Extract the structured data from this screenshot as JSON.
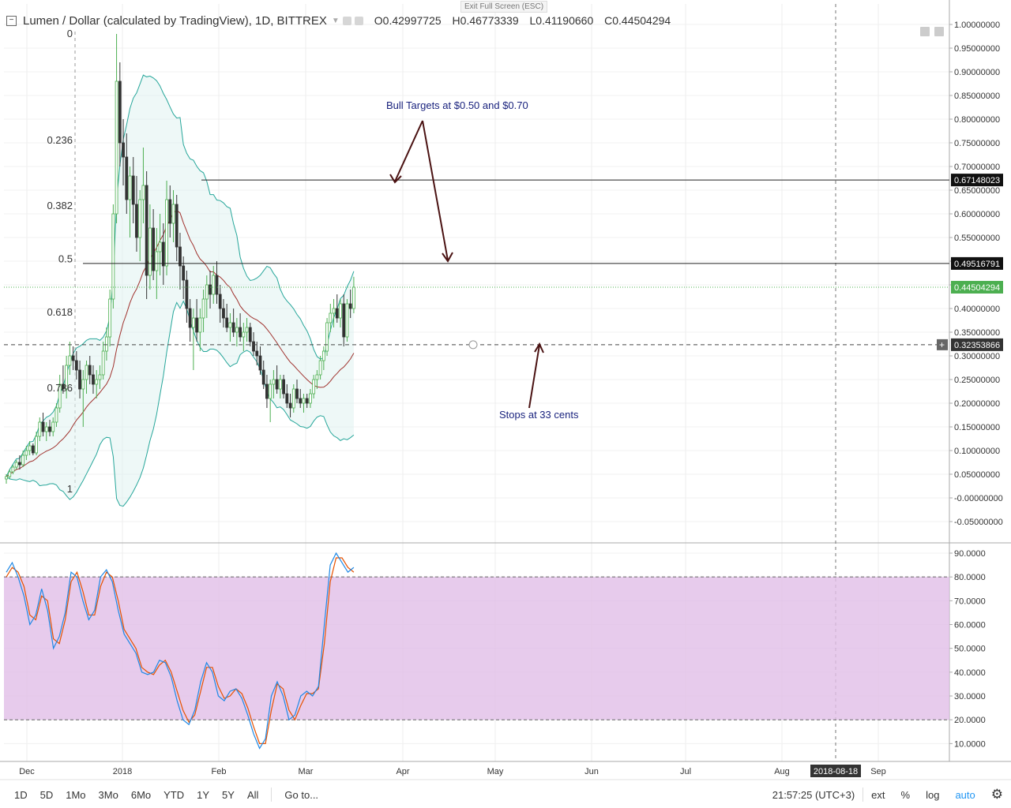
{
  "header": {
    "title": "Lumen / Dollar (calculated by TradingView), 1D, BITTREX",
    "open": "O0.42997725",
    "high": "H0.46773339",
    "low": "L0.41190660",
    "close": "C0.44504294",
    "exit_fullscreen": "Exit Full Screen (ESC)"
  },
  "toolbar": {
    "ranges": [
      "1D",
      "5D",
      "1Mo",
      "3Mo",
      "6Mo",
      "YTD",
      "1Y",
      "5Y",
      "All"
    ],
    "goto": "Go to...",
    "time": "21:57:25 (UTC+3)",
    "ext": "ext",
    "percent": "%",
    "log": "log",
    "auto": "auto",
    "settings_icon": "gear-icon"
  },
  "chart_data": [
    {
      "type": "candlestick",
      "pane": "price",
      "x_labels": [
        "Dec",
        "2018",
        "Feb",
        "Mar",
        "Apr",
        "May",
        "Jun",
        "Jul",
        "Aug",
        "Sep"
      ],
      "crosshair_date": "2018-08-18",
      "y_ticks": [
        "1.00000000",
        "0.95000000",
        "0.90000000",
        "0.85000000",
        "0.80000000",
        "0.75000000",
        "0.70000000",
        "0.65000000",
        "0.60000000",
        "0.55000000",
        "0.50000000",
        "0.45000000",
        "0.40000000",
        "0.35000000",
        "0.30000000",
        "0.25000000",
        "0.20000000",
        "0.15000000",
        "0.10000000",
        "0.05000000",
        "-0.00000000",
        "-0.05000000"
      ],
      "ylim": [
        -0.07,
        1.02
      ],
      "price_labels": [
        {
          "value": 0.67148023,
          "text": "0.67148023"
        },
        {
          "value": 0.49516791,
          "text": "0.49516791"
        },
        {
          "value": 0.44504294,
          "text": "0.44504294"
        },
        {
          "value": 0.32353866,
          "text": "0.32353866"
        }
      ],
      "fib_levels": [
        {
          "label": "0",
          "value": 0.98
        },
        {
          "label": "0.236",
          "value": 0.755
        },
        {
          "label": "0.382",
          "value": 0.617
        },
        {
          "label": "0.5",
          "value": 0.504
        },
        {
          "label": "0.618",
          "value": 0.392
        },
        {
          "label": "0.786",
          "value": 0.232
        },
        {
          "label": "1",
          "value": 0.018
        }
      ],
      "annotations": [
        {
          "text": "Bull Targets at $0.50 and $0.70"
        },
        {
          "text": "Stops at 33 cents"
        }
      ],
      "candles": [
        [
          0.04,
          0.05,
          0.03,
          0.045
        ],
        [
          0.045,
          0.06,
          0.04,
          0.055
        ],
        [
          0.055,
          0.07,
          0.05,
          0.065
        ],
        [
          0.065,
          0.08,
          0.06,
          0.075
        ],
        [
          0.075,
          0.09,
          0.06,
          0.07
        ],
        [
          0.07,
          0.1,
          0.065,
          0.09
        ],
        [
          0.09,
          0.11,
          0.08,
          0.1
        ],
        [
          0.1,
          0.12,
          0.09,
          0.11
        ],
        [
          0.11,
          0.115,
          0.09,
          0.095
        ],
        [
          0.095,
          0.14,
          0.09,
          0.13
        ],
        [
          0.13,
          0.17,
          0.12,
          0.16
        ],
        [
          0.16,
          0.18,
          0.13,
          0.14
        ],
        [
          0.14,
          0.16,
          0.12,
          0.15
        ],
        [
          0.15,
          0.165,
          0.13,
          0.14
        ],
        [
          0.14,
          0.17,
          0.13,
          0.16
        ],
        [
          0.16,
          0.2,
          0.15,
          0.19
        ],
        [
          0.19,
          0.26,
          0.18,
          0.24
        ],
        [
          0.24,
          0.28,
          0.22,
          0.23
        ],
        [
          0.23,
          0.3,
          0.21,
          0.28
        ],
        [
          0.28,
          0.33,
          0.26,
          0.3
        ],
        [
          0.3,
          0.32,
          0.27,
          0.29
        ],
        [
          0.29,
          0.31,
          0.25,
          0.27
        ],
        [
          0.27,
          0.29,
          0.21,
          0.23
        ],
        [
          0.23,
          0.27,
          0.15,
          0.25
        ],
        [
          0.25,
          0.29,
          0.22,
          0.28
        ],
        [
          0.28,
          0.3,
          0.24,
          0.26
        ],
        [
          0.26,
          0.28,
          0.22,
          0.24
        ],
        [
          0.24,
          0.27,
          0.21,
          0.25
        ],
        [
          0.25,
          0.28,
          0.23,
          0.26
        ],
        [
          0.26,
          0.33,
          0.25,
          0.31
        ],
        [
          0.31,
          0.36,
          0.29,
          0.34
        ],
        [
          0.34,
          0.44,
          0.32,
          0.42
        ],
        [
          0.42,
          0.62,
          0.4,
          0.6
        ],
        [
          0.6,
          0.98,
          0.58,
          0.88
        ],
        [
          0.88,
          0.92,
          0.7,
          0.75
        ],
        [
          0.75,
          0.8,
          0.66,
          0.72
        ],
        [
          0.72,
          0.77,
          0.6,
          0.63
        ],
        [
          0.63,
          0.7,
          0.55,
          0.68
        ],
        [
          0.68,
          0.72,
          0.58,
          0.62
        ],
        [
          0.62,
          0.68,
          0.52,
          0.55
        ],
        [
          0.55,
          0.65,
          0.5,
          0.63
        ],
        [
          0.63,
          0.74,
          0.58,
          0.66
        ],
        [
          0.66,
          0.69,
          0.42,
          0.47
        ],
        [
          0.47,
          0.62,
          0.44,
          0.57
        ],
        [
          0.57,
          0.61,
          0.46,
          0.48
        ],
        [
          0.48,
          0.57,
          0.42,
          0.52
        ],
        [
          0.52,
          0.6,
          0.47,
          0.54
        ],
        [
          0.54,
          0.58,
          0.45,
          0.49
        ],
        [
          0.49,
          0.67,
          0.47,
          0.63
        ],
        [
          0.63,
          0.66,
          0.55,
          0.58
        ],
        [
          0.58,
          0.65,
          0.54,
          0.62
        ],
        [
          0.62,
          0.64,
          0.5,
          0.53
        ],
        [
          0.53,
          0.56,
          0.44,
          0.49
        ],
        [
          0.49,
          0.51,
          0.42,
          0.46
        ],
        [
          0.46,
          0.48,
          0.37,
          0.4
        ],
        [
          0.4,
          0.42,
          0.33,
          0.36
        ],
        [
          0.36,
          0.4,
          0.27,
          0.38
        ],
        [
          0.38,
          0.42,
          0.33,
          0.35
        ],
        [
          0.35,
          0.4,
          0.31,
          0.38
        ],
        [
          0.38,
          0.44,
          0.35,
          0.42
        ],
        [
          0.42,
          0.47,
          0.38,
          0.45
        ],
        [
          0.45,
          0.48,
          0.4,
          0.43
        ],
        [
          0.43,
          0.49,
          0.41,
          0.47
        ],
        [
          0.47,
          0.5,
          0.41,
          0.43
        ],
        [
          0.43,
          0.45,
          0.37,
          0.4
        ],
        [
          0.4,
          0.42,
          0.36,
          0.38
        ],
        [
          0.38,
          0.41,
          0.35,
          0.36
        ],
        [
          0.36,
          0.39,
          0.33,
          0.37
        ],
        [
          0.37,
          0.4,
          0.34,
          0.35
        ],
        [
          0.35,
          0.38,
          0.32,
          0.36
        ],
        [
          0.36,
          0.39,
          0.33,
          0.34
        ],
        [
          0.34,
          0.37,
          0.31,
          0.35
        ],
        [
          0.35,
          0.38,
          0.33,
          0.36
        ],
        [
          0.36,
          0.37,
          0.32,
          0.33
        ],
        [
          0.33,
          0.35,
          0.3,
          0.31
        ],
        [
          0.31,
          0.33,
          0.28,
          0.3
        ],
        [
          0.3,
          0.32,
          0.26,
          0.27
        ],
        [
          0.27,
          0.29,
          0.23,
          0.24
        ],
        [
          0.24,
          0.26,
          0.19,
          0.21
        ],
        [
          0.21,
          0.25,
          0.16,
          0.24
        ],
        [
          0.24,
          0.27,
          0.21,
          0.25
        ],
        [
          0.25,
          0.28,
          0.22,
          0.23
        ],
        [
          0.23,
          0.26,
          0.21,
          0.25
        ],
        [
          0.25,
          0.26,
          0.21,
          0.22
        ],
        [
          0.22,
          0.24,
          0.19,
          0.2
        ],
        [
          0.2,
          0.22,
          0.17,
          0.19
        ],
        [
          0.19,
          0.24,
          0.18,
          0.23
        ],
        [
          0.23,
          0.25,
          0.2,
          0.21
        ],
        [
          0.21,
          0.23,
          0.19,
          0.2
        ],
        [
          0.2,
          0.22,
          0.18,
          0.21
        ],
        [
          0.21,
          0.22,
          0.19,
          0.2
        ],
        [
          0.2,
          0.23,
          0.19,
          0.22
        ],
        [
          0.22,
          0.26,
          0.21,
          0.25
        ],
        [
          0.25,
          0.27,
          0.23,
          0.26
        ],
        [
          0.26,
          0.3,
          0.25,
          0.29
        ],
        [
          0.29,
          0.32,
          0.27,
          0.31
        ],
        [
          0.31,
          0.38,
          0.3,
          0.37
        ],
        [
          0.37,
          0.41,
          0.35,
          0.39
        ],
        [
          0.39,
          0.42,
          0.36,
          0.4
        ],
        [
          0.4,
          0.43,
          0.37,
          0.38
        ],
        [
          0.38,
          0.42,
          0.36,
          0.41
        ],
        [
          0.41,
          0.43,
          0.32,
          0.34
        ],
        [
          0.34,
          0.42,
          0.33,
          0.41
        ],
        [
          0.41,
          0.44,
          0.38,
          0.4
        ],
        [
          0.4,
          0.467,
          0.39,
          0.445
        ]
      ]
    },
    {
      "type": "line",
      "pane": "stochastic",
      "y_ticks": [
        "90.0000",
        "80.0000",
        "70.0000",
        "60.0000",
        "50.0000",
        "40.0000",
        "30.0000",
        "20.0000",
        "10.0000"
      ],
      "ylim": [
        2,
        96
      ],
      "bands": [
        20,
        80
      ],
      "series": [
        {
          "color": "#1e88e5",
          "values": [
            82,
            86,
            80,
            72,
            60,
            64,
            75,
            66,
            50,
            55,
            65,
            82,
            80,
            70,
            62,
            66,
            80,
            83,
            78,
            66,
            56,
            52,
            48,
            40,
            39,
            40,
            45,
            44,
            38,
            28,
            20,
            18,
            24,
            36,
            44,
            40,
            30,
            28,
            32,
            33,
            29,
            22,
            14,
            8,
            12,
            30,
            36,
            30,
            20,
            22,
            30,
            32,
            30,
            34,
            60,
            85,
            90,
            86,
            82,
            84
          ]
        },
        {
          "color": "#e65100",
          "values": [
            80,
            84,
            82,
            76,
            64,
            62,
            72,
            70,
            54,
            52,
            62,
            78,
            82,
            74,
            64,
            64,
            76,
            82,
            80,
            70,
            58,
            54,
            50,
            42,
            40,
            39,
            43,
            45,
            40,
            32,
            24,
            19,
            22,
            32,
            42,
            42,
            34,
            29,
            30,
            33,
            31,
            25,
            17,
            10,
            10,
            24,
            35,
            33,
            24,
            20,
            26,
            31,
            31,
            33,
            52,
            78,
            88,
            88,
            84,
            82
          ]
        }
      ]
    }
  ]
}
